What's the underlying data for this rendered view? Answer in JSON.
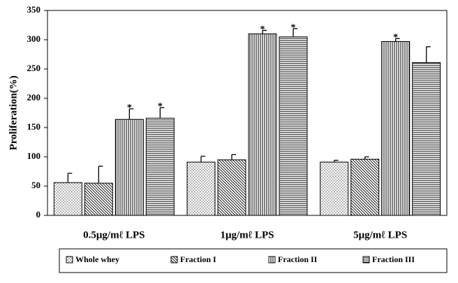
{
  "chart_data": {
    "type": "bar",
    "y_label": "Proliferation(%)",
    "categories": [
      "0.5μg/mℓ LPS",
      "1μg/mℓ LPS",
      "5μg/mℓ LPS"
    ],
    "series": [
      {
        "name": "Whole whey",
        "color": "#000000",
        "pattern": "dots",
        "values": [
          56,
          91,
          91
        ],
        "errors": [
          16,
          10,
          3
        ],
        "labels": [
          null,
          null,
          null
        ]
      },
      {
        "name": "Fraction I",
        "color": "#000000",
        "pattern": "diagonal",
        "values": [
          55,
          95,
          96
        ],
        "errors": [
          29,
          9,
          4
        ],
        "labels": [
          null,
          null,
          null
        ]
      },
      {
        "name": "Fraction II",
        "color": "#000000",
        "pattern": "vertical",
        "values": [
          164,
          310,
          297
        ],
        "errors": [
          18,
          6,
          5
        ],
        "labels": [
          "*",
          "*",
          "*"
        ]
      },
      {
        "name": "Fraction III",
        "color": "#000000",
        "pattern": "horizontal",
        "values": [
          166,
          305,
          261
        ],
        "errors": [
          18,
          14,
          27
        ],
        "labels": [
          "*",
          "*",
          null
        ]
      }
    ],
    "ylim": [
      0,
      350
    ],
    "yticks": [
      0,
      50,
      100,
      150,
      200,
      250,
      300,
      350
    ],
    "grid": false,
    "legend": "bottom"
  }
}
